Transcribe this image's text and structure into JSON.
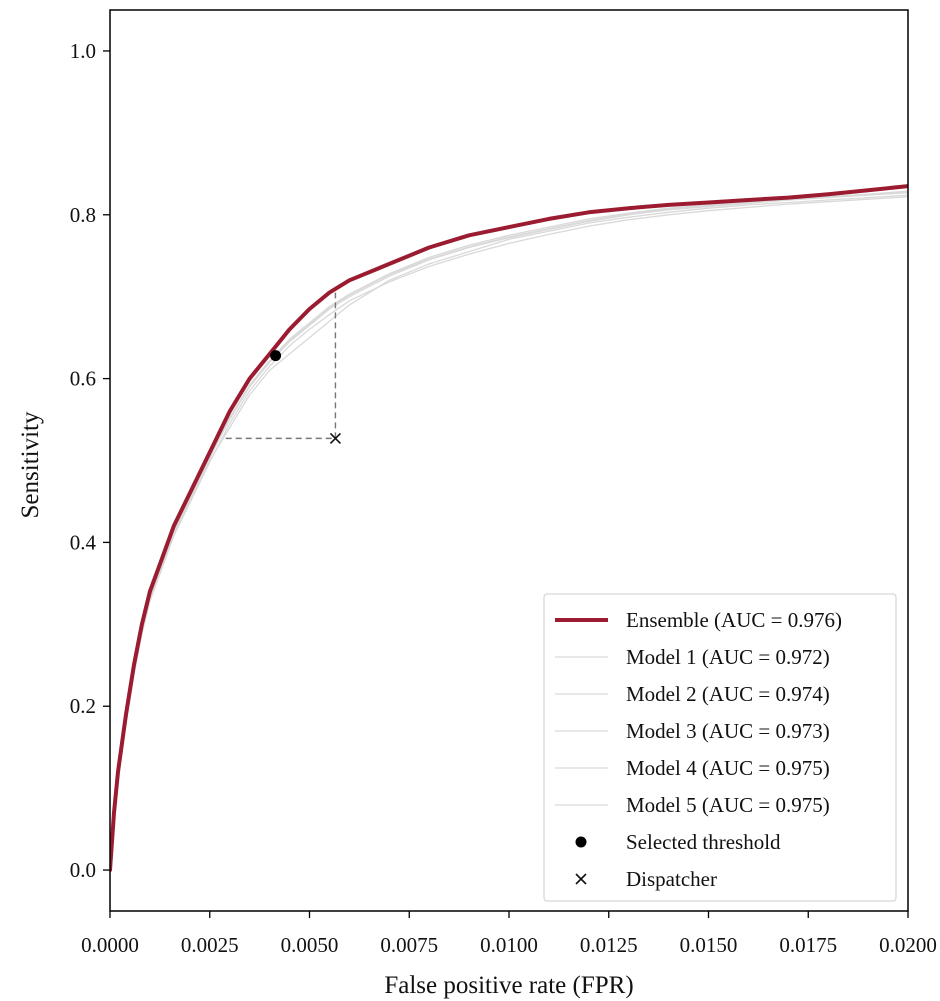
{
  "chart_data": {
    "type": "line",
    "title": "",
    "xlabel": "False positive rate (FPR)",
    "ylabel": "Sensitivity",
    "xlim": [
      0,
      0.02
    ],
    "ylim": [
      -0.05,
      1.05
    ],
    "x_ticks": [
      0,
      0.0025,
      0.005,
      0.0075,
      0.01,
      0.0125,
      0.015,
      0.0175,
      0.02
    ],
    "x_tick_labels": [
      "0.0000",
      "0.0025",
      "0.0050",
      "0.0075",
      "0.0100",
      "0.0125",
      "0.0150",
      "0.0175",
      "0.0200"
    ],
    "y_ticks": [
      0,
      0.2,
      0.4,
      0.6,
      0.8,
      1.0
    ],
    "y_tick_labels": [
      "0.0",
      "0.2",
      "0.4",
      "0.6",
      "0.8",
      "1.0"
    ],
    "grid": false,
    "legend_position": "lower-right",
    "series": [
      {
        "name": "Ensemble (AUC = 0.976)",
        "color": "#9b1b30",
        "emphasis": true,
        "x": [
          0,
          0.0001,
          0.0002,
          0.0004,
          0.0006,
          0.0008,
          0.001,
          0.0013,
          0.0016,
          0.002,
          0.0025,
          0.003,
          0.0035,
          0.004,
          0.0045,
          0.005,
          0.0055,
          0.006,
          0.007,
          0.008,
          0.009,
          0.01,
          0.011,
          0.012,
          0.013,
          0.014,
          0.015,
          0.016,
          0.017,
          0.018,
          0.019,
          0.02
        ],
        "y": [
          0,
          0.07,
          0.12,
          0.19,
          0.25,
          0.3,
          0.34,
          0.38,
          0.42,
          0.46,
          0.51,
          0.56,
          0.6,
          0.63,
          0.66,
          0.685,
          0.705,
          0.72,
          0.74,
          0.76,
          0.775,
          0.785,
          0.795,
          0.803,
          0.808,
          0.812,
          0.815,
          0.818,
          0.821,
          0.825,
          0.83,
          0.835
        ]
      },
      {
        "name": "Model 1 (AUC = 0.972)",
        "color": "#d9d9d9",
        "x": [
          0,
          0.0001,
          0.0002,
          0.0004,
          0.0006,
          0.0008,
          0.001,
          0.0013,
          0.0016,
          0.002,
          0.0025,
          0.003,
          0.0035,
          0.004,
          0.0045,
          0.005,
          0.0055,
          0.006,
          0.007,
          0.008,
          0.009,
          0.01,
          0.011,
          0.012,
          0.013,
          0.014,
          0.015,
          0.016,
          0.017,
          0.018,
          0.019,
          0.02
        ],
        "y": [
          0,
          0.065,
          0.11,
          0.18,
          0.24,
          0.29,
          0.33,
          0.37,
          0.41,
          0.45,
          0.5,
          0.54,
          0.58,
          0.61,
          0.63,
          0.65,
          0.67,
          0.69,
          0.72,
          0.74,
          0.755,
          0.77,
          0.78,
          0.79,
          0.797,
          0.803,
          0.808,
          0.812,
          0.815,
          0.818,
          0.821,
          0.824
        ]
      },
      {
        "name": "Model 2 (AUC = 0.974)",
        "color": "#d9d9d9",
        "x": [
          0,
          0.0001,
          0.0002,
          0.0004,
          0.0006,
          0.0008,
          0.001,
          0.0013,
          0.0016,
          0.002,
          0.0025,
          0.003,
          0.0035,
          0.004,
          0.0045,
          0.005,
          0.0055,
          0.006,
          0.007,
          0.008,
          0.009,
          0.01,
          0.011,
          0.012,
          0.013,
          0.014,
          0.015,
          0.016,
          0.017,
          0.018,
          0.019,
          0.02
        ],
        "y": [
          0,
          0.068,
          0.115,
          0.185,
          0.245,
          0.295,
          0.335,
          0.375,
          0.415,
          0.455,
          0.505,
          0.55,
          0.59,
          0.62,
          0.645,
          0.665,
          0.685,
          0.7,
          0.725,
          0.745,
          0.76,
          0.772,
          0.782,
          0.792,
          0.8,
          0.806,
          0.81,
          0.814,
          0.818,
          0.821,
          0.824,
          0.827
        ]
      },
      {
        "name": "Model 3 (AUC = 0.973)",
        "color": "#d9d9d9",
        "x": [
          0,
          0.0001,
          0.0002,
          0.0004,
          0.0006,
          0.0008,
          0.001,
          0.0013,
          0.0016,
          0.002,
          0.0025,
          0.003,
          0.0035,
          0.004,
          0.0045,
          0.005,
          0.0055,
          0.006,
          0.007,
          0.008,
          0.009,
          0.01,
          0.011,
          0.012,
          0.013,
          0.014,
          0.015,
          0.016,
          0.017,
          0.018,
          0.019,
          0.02
        ],
        "y": [
          0,
          0.062,
          0.108,
          0.178,
          0.238,
          0.288,
          0.328,
          0.368,
          0.408,
          0.448,
          0.498,
          0.545,
          0.585,
          0.615,
          0.64,
          0.66,
          0.678,
          0.695,
          0.718,
          0.737,
          0.752,
          0.765,
          0.776,
          0.786,
          0.794,
          0.8,
          0.805,
          0.809,
          0.813,
          0.816,
          0.819,
          0.822
        ]
      },
      {
        "name": "Model 4 (AUC = 0.975)",
        "color": "#d9d9d9",
        "x": [
          0,
          0.0001,
          0.0002,
          0.0004,
          0.0006,
          0.0008,
          0.001,
          0.0013,
          0.0016,
          0.002,
          0.0025,
          0.003,
          0.0035,
          0.004,
          0.0045,
          0.005,
          0.0055,
          0.006,
          0.007,
          0.008,
          0.009,
          0.01,
          0.011,
          0.012,
          0.013,
          0.014,
          0.015,
          0.016,
          0.017,
          0.018,
          0.019,
          0.02
        ],
        "y": [
          0,
          0.066,
          0.113,
          0.183,
          0.243,
          0.293,
          0.333,
          0.373,
          0.413,
          0.453,
          0.503,
          0.552,
          0.592,
          0.622,
          0.648,
          0.668,
          0.688,
          0.703,
          0.728,
          0.748,
          0.763,
          0.775,
          0.785,
          0.795,
          0.802,
          0.808,
          0.812,
          0.816,
          0.819,
          0.822,
          0.825,
          0.828
        ]
      },
      {
        "name": "Model 5 (AUC = 0.975)",
        "color": "#d9d9d9",
        "x": [
          0,
          0.0001,
          0.0002,
          0.0004,
          0.0006,
          0.0008,
          0.001,
          0.0013,
          0.0016,
          0.002,
          0.0025,
          0.003,
          0.0035,
          0.004,
          0.0045,
          0.005,
          0.0055,
          0.006,
          0.007,
          0.008,
          0.009,
          0.01,
          0.011,
          0.012,
          0.013,
          0.014,
          0.015,
          0.016,
          0.017,
          0.018,
          0.019,
          0.02
        ],
        "y": [
          0,
          0.067,
          0.114,
          0.184,
          0.244,
          0.294,
          0.334,
          0.374,
          0.414,
          0.454,
          0.504,
          0.551,
          0.591,
          0.621,
          0.646,
          0.666,
          0.686,
          0.702,
          0.727,
          0.746,
          0.761,
          0.773,
          0.783,
          0.793,
          0.801,
          0.807,
          0.811,
          0.815,
          0.818,
          0.822,
          0.825,
          0.829
        ]
      }
    ],
    "markers": [
      {
        "name": "Selected threshold",
        "shape": "circle",
        "x": 0.00415,
        "y": 0.628
      },
      {
        "name": "Dispatcher",
        "shape": "x",
        "x": 0.00565,
        "y": 0.527
      }
    ],
    "reference_lines": [
      {
        "style": "dashed",
        "color": "#777777",
        "x": [
          0.0029,
          0.00565
        ],
        "y": [
          0.527,
          0.527
        ]
      },
      {
        "style": "dashed",
        "color": "#777777",
        "x": [
          0.00565,
          0.00565
        ],
        "y": [
          0.527,
          0.705
        ]
      }
    ]
  }
}
